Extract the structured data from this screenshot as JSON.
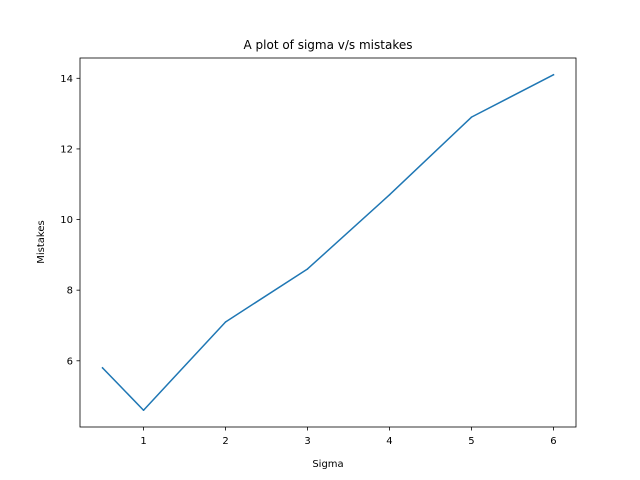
{
  "chart_data": {
    "type": "line",
    "title": "A plot of sigma v/s mistakes",
    "xlabel": "Sigma",
    "ylabel": "Mistakes",
    "xlim": [
      0.225,
      6.275
    ],
    "ylim": [
      4.125,
      14.575
    ],
    "xticks": [
      1,
      2,
      3,
      4,
      5,
      6
    ],
    "yticks": [
      6,
      8,
      10,
      12,
      14
    ],
    "grid": false,
    "series": [
      {
        "name": "mistakes",
        "color": "#1f77b4",
        "x": [
          0.5,
          1,
          2,
          3,
          4,
          5,
          6
        ],
        "y": [
          5.8,
          4.6,
          7.1,
          8.6,
          10.7,
          12.9,
          14.1
        ]
      }
    ]
  }
}
